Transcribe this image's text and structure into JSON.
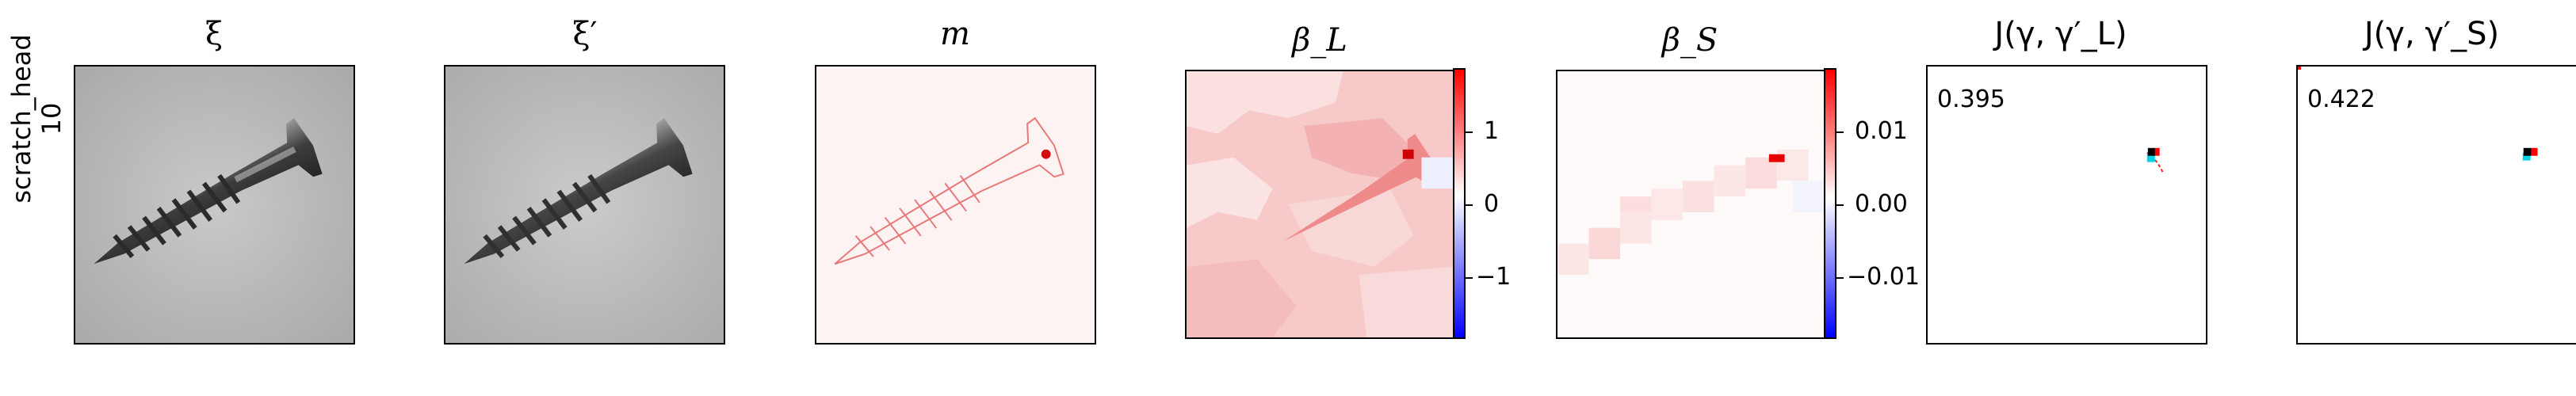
{
  "row": {
    "category": "scratch_head",
    "index": "10"
  },
  "panels": [
    {
      "title": "ξ"
    },
    {
      "title": "ξ′"
    },
    {
      "title": "m"
    },
    {
      "title": "β_L"
    },
    {
      "title": "β_S"
    },
    {
      "title": "J(γ, γ′_L)"
    },
    {
      "title": "J(γ, γ′_S)"
    }
  ],
  "colorbar_L": {
    "ticks": [
      "1",
      "0",
      "−1"
    ]
  },
  "colorbar_S": {
    "ticks": [
      "0.01",
      "0.00",
      "−0.01"
    ]
  },
  "scores": {
    "J_L": "0.395",
    "J_S": "0.422"
  },
  "colors": {
    "positive": "#ff0000",
    "negative": "#0000ff",
    "marker_black": "#000000",
    "marker_cyan": "#00d5e8"
  }
}
